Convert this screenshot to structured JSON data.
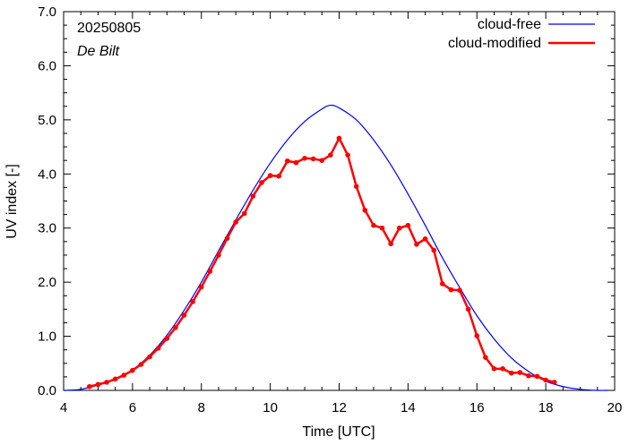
{
  "chart_data": {
    "type": "line",
    "xlabel": "Time  [UTC]",
    "ylabel": "UV index  [-]",
    "xlim": [
      4,
      20
    ],
    "ylim": [
      0.0,
      7.0
    ],
    "xticks": [
      "4",
      "6",
      "8",
      "10",
      "12",
      "14",
      "16",
      "18",
      "20"
    ],
    "yticks": [
      "0.0",
      "1.0",
      "2.0",
      "3.0",
      "4.0",
      "5.0",
      "6.0",
      "7.0"
    ],
    "annotations": {
      "date": "20250805",
      "location": "De Bilt"
    },
    "legend_position": "top-right",
    "series": [
      {
        "name": "cloud-free",
        "color": "#0000ff",
        "x": [
          4.0,
          4.5,
          5.0,
          5.5,
          6.0,
          6.5,
          7.0,
          7.5,
          8.0,
          8.5,
          9.0,
          9.5,
          10.0,
          10.5,
          11.0,
          11.5,
          11.75,
          12.0,
          12.5,
          13.0,
          13.5,
          14.0,
          14.5,
          15.0,
          15.5,
          16.0,
          16.5,
          17.0,
          17.5,
          18.0,
          18.5,
          19.0,
          19.5,
          19.8
        ],
        "y": [
          0.0,
          0.02,
          0.1,
          0.2,
          0.38,
          0.65,
          1.02,
          1.48,
          2.0,
          2.58,
          3.15,
          3.7,
          4.2,
          4.63,
          4.97,
          5.2,
          5.27,
          5.22,
          5.0,
          4.63,
          4.17,
          3.63,
          3.05,
          2.45,
          1.9,
          1.38,
          0.95,
          0.6,
          0.35,
          0.17,
          0.07,
          0.02,
          0.0,
          0.0
        ]
      },
      {
        "name": "cloud-modified",
        "color": "#ff0000",
        "x": [
          4.75,
          5.0,
          5.25,
          5.5,
          5.75,
          6.0,
          6.25,
          6.5,
          6.75,
          7.0,
          7.25,
          7.5,
          7.75,
          8.0,
          8.25,
          8.5,
          8.75,
          9.0,
          9.25,
          9.5,
          9.75,
          10.0,
          10.25,
          10.5,
          10.75,
          11.0,
          11.25,
          11.5,
          11.75,
          12.0,
          12.25,
          12.5,
          12.75,
          13.0,
          13.25,
          13.5,
          13.75,
          14.0,
          14.25,
          14.5,
          14.75,
          15.0,
          15.25,
          15.5,
          15.75,
          16.0,
          16.25,
          16.5,
          16.75,
          17.0,
          17.25,
          17.5,
          17.75,
          18.0,
          18.25
        ],
        "y": [
          0.07,
          0.11,
          0.15,
          0.21,
          0.28,
          0.37,
          0.48,
          0.62,
          0.78,
          0.96,
          1.16,
          1.39,
          1.64,
          1.91,
          2.2,
          2.5,
          2.81,
          3.11,
          3.27,
          3.59,
          3.84,
          3.97,
          3.96,
          4.24,
          4.21,
          4.29,
          4.28,
          4.25,
          4.35,
          4.66,
          4.35,
          3.77,
          3.33,
          3.05,
          3.0,
          2.71,
          3.0,
          3.05,
          2.7,
          2.8,
          2.59,
          1.97,
          1.86,
          1.85,
          1.5,
          1.01,
          0.61,
          0.4,
          0.4,
          0.32,
          0.33,
          0.27,
          0.26,
          0.19,
          0.15
        ]
      }
    ]
  }
}
